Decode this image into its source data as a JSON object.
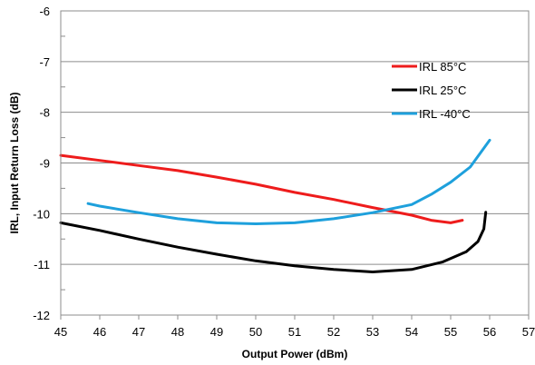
{
  "chart_data": {
    "type": "line",
    "title": "",
    "xlabel": "Output Power (dBm)",
    "ylabel": "IRL, Input Return Loss (dB)",
    "xlim": [
      45,
      57
    ],
    "ylim": [
      -12,
      -6
    ],
    "x_ticks": [
      "45",
      "46",
      "47",
      "48",
      "49",
      "50",
      "51",
      "52",
      "53",
      "54",
      "55",
      "56",
      "57"
    ],
    "y_ticks": [
      "-6",
      "-7",
      "-8",
      "-9",
      "-10",
      "-11",
      "-12"
    ],
    "grid": "horizontal",
    "legend_position": "top-right",
    "series": [
      {
        "name": "IRL 85°C",
        "color": "#ee1c1c",
        "points": [
          [
            45.0,
            -8.85
          ],
          [
            46.0,
            -8.95
          ],
          [
            47.0,
            -9.05
          ],
          [
            48.0,
            -9.15
          ],
          [
            49.0,
            -9.28
          ],
          [
            50.0,
            -9.42
          ],
          [
            51.0,
            -9.58
          ],
          [
            52.0,
            -9.72
          ],
          [
            53.0,
            -9.88
          ],
          [
            54.0,
            -10.03
          ],
          [
            54.5,
            -10.13
          ],
          [
            55.0,
            -10.18
          ],
          [
            55.3,
            -10.13
          ]
        ]
      },
      {
        "name": "IRL 25°C",
        "color": "#000000",
        "points": [
          [
            45.0,
            -10.18
          ],
          [
            46.0,
            -10.33
          ],
          [
            47.0,
            -10.5
          ],
          [
            48.0,
            -10.66
          ],
          [
            49.0,
            -10.8
          ],
          [
            50.0,
            -10.93
          ],
          [
            51.0,
            -11.03
          ],
          [
            52.0,
            -11.1
          ],
          [
            53.0,
            -11.15
          ],
          [
            54.0,
            -11.1
          ],
          [
            54.8,
            -10.95
          ],
          [
            55.4,
            -10.75
          ],
          [
            55.7,
            -10.55
          ],
          [
            55.85,
            -10.3
          ],
          [
            55.9,
            -9.97
          ]
        ]
      },
      {
        "name": "IRL -40°C",
        "color": "#1ea0dc",
        "points": [
          [
            45.7,
            -9.8
          ],
          [
            46.0,
            -9.85
          ],
          [
            47.0,
            -9.98
          ],
          [
            48.0,
            -10.1
          ],
          [
            49.0,
            -10.18
          ],
          [
            50.0,
            -10.2
          ],
          [
            51.0,
            -10.18
          ],
          [
            52.0,
            -10.1
          ],
          [
            53.0,
            -9.98
          ],
          [
            54.0,
            -9.82
          ],
          [
            54.5,
            -9.62
          ],
          [
            55.0,
            -9.38
          ],
          [
            55.5,
            -9.08
          ],
          [
            56.0,
            -8.55
          ]
        ]
      }
    ]
  }
}
